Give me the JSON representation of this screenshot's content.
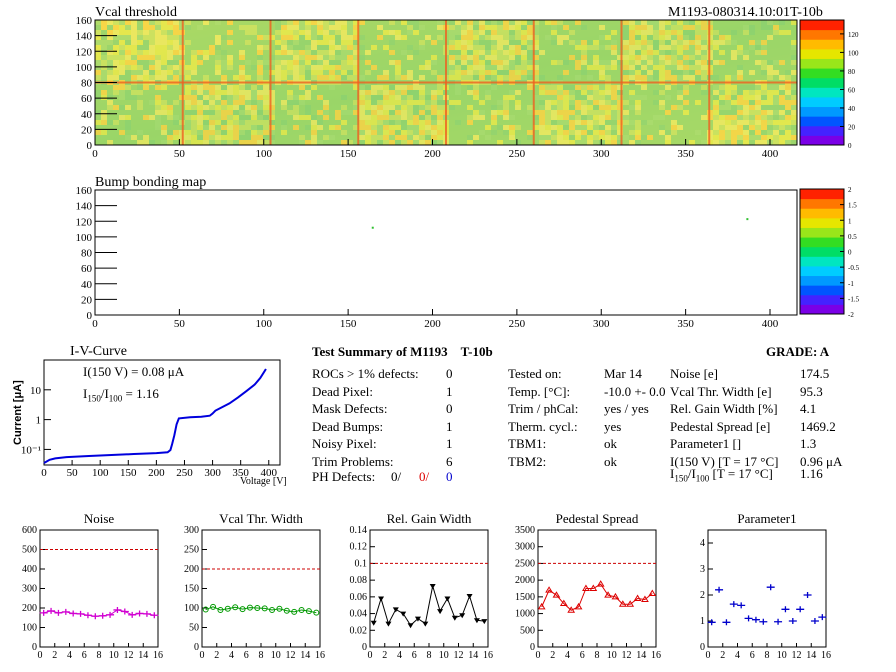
{
  "header": {
    "title_left": "Vcal threshold",
    "title_right": "M1193-080314.10:01T-10b"
  },
  "heatmap1": {
    "x_ticks": [
      "0",
      "50",
      "100",
      "150",
      "200",
      "250",
      "300",
      "350",
      "400"
    ],
    "y_ticks": [
      "0",
      "20",
      "40",
      "60",
      "80",
      "100",
      "120",
      "140",
      "160"
    ],
    "xlim": [
      0,
      416
    ],
    "ylim": [
      0,
      160
    ],
    "colorbar_ticks": [
      "0",
      "20",
      "40",
      "60",
      "80",
      "100",
      "120"
    ],
    "colorbar_range": [
      0,
      135
    ]
  },
  "heatmap2": {
    "title": "Bump bonding map",
    "x_ticks": [
      "0",
      "50",
      "100",
      "150",
      "200",
      "250",
      "300",
      "350",
      "400"
    ],
    "y_ticks": [
      "0",
      "20",
      "40",
      "60",
      "80",
      "100",
      "120",
      "140",
      "160"
    ],
    "xlim": [
      0,
      416
    ],
    "ylim": [
      0,
      160
    ],
    "colorbar_ticks": [
      "-2",
      "-1.5",
      "-1",
      "-0.5",
      "0",
      "0.5",
      "1",
      "1.5",
      "2"
    ],
    "colorbar_range": [
      -2,
      2
    ],
    "points": [
      [
        164,
        113
      ],
      [
        386,
        124
      ]
    ]
  },
  "iv": {
    "title": "I-V-Curve",
    "ylabel": "Current [μA]",
    "xlabel": "Voltage [V]",
    "annot1": "I(150 V) = 0.08 μA",
    "annot2_main": "I",
    "annot2_sub1": "150",
    "annot2_mid": "/I",
    "annot2_sub2": "100",
    "annot2_val": " =  1.16",
    "x_ticks": [
      "0",
      "50",
      "100",
      "150",
      "200",
      "250",
      "300",
      "350",
      "400"
    ],
    "y_ticks": [
      "10⁻¹",
      "1",
      "10"
    ],
    "xlim": [
      0,
      420
    ],
    "points": [
      [
        0,
        0.035
      ],
      [
        10,
        0.045
      ],
      [
        20,
        0.05
      ],
      [
        40,
        0.055
      ],
      [
        80,
        0.06
      ],
      [
        120,
        0.065
      ],
      [
        160,
        0.07
      ],
      [
        200,
        0.075
      ],
      [
        220,
        0.08
      ],
      [
        225,
        0.095
      ],
      [
        228,
        0.15
      ],
      [
        232,
        0.3
      ],
      [
        236,
        0.7
      ],
      [
        240,
        1.1
      ],
      [
        260,
        1.2
      ],
      [
        280,
        1.25
      ],
      [
        295,
        1.35
      ],
      [
        300,
        1.6
      ],
      [
        305,
        2.0
      ],
      [
        315,
        2.5
      ],
      [
        330,
        3.5
      ],
      [
        345,
        5.5
      ],
      [
        360,
        9
      ],
      [
        375,
        15
      ],
      [
        385,
        25
      ],
      [
        395,
        50
      ]
    ]
  },
  "summary": {
    "title": "Test Summary of M1193",
    "title2": "T-10b",
    "grade": "GRADE:  A",
    "left_rows": [
      {
        "label": "ROCs > 1% defects:",
        "value": "0"
      },
      {
        "label": "Dead Pixel:",
        "value": "1"
      },
      {
        "label": "Mask Defects:",
        "value": "0"
      },
      {
        "label": "Dead Bumps:",
        "value": "1"
      },
      {
        "label": "Noisy Pixel:",
        "value": "1"
      },
      {
        "label": "Trim Problems:",
        "value": "6"
      }
    ],
    "ph_label": "PH Defects:",
    "ph_values": [
      "0/",
      "0/",
      "0"
    ],
    "mid_rows": [
      {
        "label": "Tested on:",
        "value": "Mar 14"
      },
      {
        "label": "Temp. [°C]:",
        "value": "-10.0 +- 0.0"
      },
      {
        "label": "Trim / phCal:",
        "value": "yes / yes"
      },
      {
        "label": "Therm. cycl.:",
        "value": "yes"
      },
      {
        "label": "TBM1:",
        "value": "ok"
      },
      {
        "label": "TBM2:",
        "value": "ok"
      }
    ],
    "right_rows": [
      {
        "label": "Noise [e]",
        "value": "174.5"
      },
      {
        "label": "Vcal Thr. Width [e]",
        "value": "95.3"
      },
      {
        "label": "Rel. Gain Width [%]",
        "value": "4.1"
      },
      {
        "label": "Pedestal Spread [e]",
        "value": "1469.2"
      },
      {
        "label": "Parameter1 []",
        "value": "1.3"
      },
      {
        "label": "I(150 V)  [T = 17 °C]",
        "value": "0.96 μA"
      }
    ],
    "ratio_row": {
      "label_main": "I",
      "sub1": "150",
      "mid": "/I",
      "sub2": "100",
      "rest": "  [T = 17 °C]",
      "value": "1.16"
    }
  },
  "chart_data": [
    {
      "type": "scatter",
      "title": "Noise",
      "x": [
        0,
        1,
        2,
        3,
        4,
        5,
        6,
        7,
        8,
        9,
        10,
        11,
        12,
        13,
        14,
        15
      ],
      "values": [
        175,
        185,
        175,
        180,
        172,
        170,
        163,
        158,
        160,
        165,
        190,
        182,
        165,
        172,
        170,
        163
      ],
      "ylim": [
        0,
        600
      ],
      "y_ticks": [
        0,
        100,
        200,
        300,
        400,
        500,
        600
      ],
      "threshold": 500,
      "color": "#d100d1",
      "marker": "plus"
    },
    {
      "type": "line",
      "title": "Vcal Thr. Width",
      "x": [
        0,
        1,
        2,
        3,
        4,
        5,
        6,
        7,
        8,
        9,
        10,
        11,
        12,
        13,
        14,
        15
      ],
      "values": [
        96,
        103,
        95,
        98,
        102,
        97,
        101,
        100,
        99,
        95,
        98,
        93,
        90,
        95,
        92,
        88
      ],
      "ylim": [
        0,
        300
      ],
      "y_ticks": [
        0,
        50,
        100,
        150,
        200,
        250,
        300
      ],
      "threshold": 200,
      "color": "#009900",
      "marker": "circle"
    },
    {
      "type": "line",
      "title": "Rel. Gain Width",
      "x": [
        0,
        1,
        2,
        3,
        4,
        5,
        6,
        7,
        8,
        9,
        10,
        11,
        12,
        13,
        14,
        15
      ],
      "values": [
        0.029,
        0.058,
        0.028,
        0.045,
        0.04,
        0.026,
        0.034,
        0.028,
        0.073,
        0.043,
        0.058,
        0.035,
        0.038,
        0.061,
        0.032,
        0.031
      ],
      "ylim": [
        0,
        0.14
      ],
      "y_ticks": [
        0,
        0.02,
        0.04,
        0.06,
        0.08,
        0.1,
        0.12,
        0.14
      ],
      "threshold": 0.1,
      "color": "#000000",
      "marker": "triangle-down"
    },
    {
      "type": "line",
      "title": "Pedestal Spread",
      "x": [
        0,
        1,
        2,
        3,
        4,
        5,
        6,
        7,
        8,
        9,
        10,
        11,
        12,
        13,
        14,
        15
      ],
      "values": [
        1200,
        1700,
        1550,
        1300,
        1100,
        1200,
        1750,
        1750,
        1880,
        1550,
        1500,
        1280,
        1280,
        1450,
        1420,
        1600
      ],
      "ylim": [
        0,
        3500
      ],
      "y_ticks": [
        0,
        500,
        1000,
        1500,
        2000,
        2500,
        3000,
        3500
      ],
      "threshold": 2500,
      "color": "#dd0000",
      "marker": "triangle-up"
    },
    {
      "type": "scatter",
      "title": "Parameter1",
      "x": [
        0,
        1,
        2,
        3,
        4,
        5,
        6,
        7,
        8,
        9,
        10,
        11,
        12,
        13,
        14,
        15
      ],
      "values": [
        0.95,
        2.2,
        0.95,
        1.65,
        1.6,
        1.1,
        1.05,
        0.97,
        2.3,
        0.97,
        1.45,
        1.0,
        1.45,
        2.0,
        1.0,
        1.15
      ],
      "ylim": [
        0,
        4.5
      ],
      "y_ticks": [
        0,
        1,
        2,
        3,
        4
      ],
      "threshold": null,
      "color": "#0000cc",
      "marker": "plus"
    }
  ]
}
